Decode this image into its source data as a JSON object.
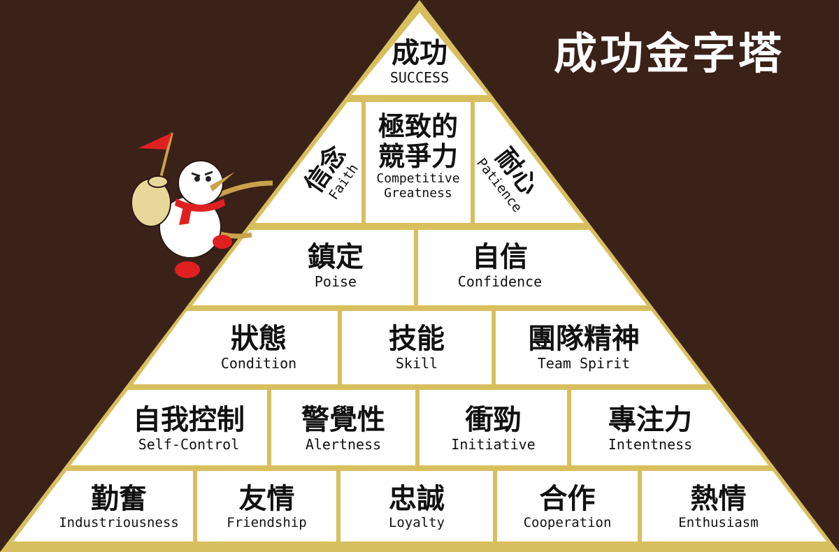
{
  "title": "成功金字塔",
  "pyramid": {
    "apex": {
      "zh": "成功",
      "en": "SUCCESS"
    },
    "row2": {
      "faith": {
        "zh": "信念",
        "en": "Faith"
      },
      "competitive": {
        "zh1": "極致的",
        "zh2": "競爭力",
        "en1": "Competitive",
        "en2": "Greatness"
      },
      "patience": {
        "zh": "耐心",
        "en": "Patience"
      }
    },
    "row3": [
      {
        "zh": "鎮定",
        "en": "Poise"
      },
      {
        "zh": "自信",
        "en": "Confidence"
      }
    ],
    "row4": [
      {
        "zh": "狀態",
        "en": "Condition"
      },
      {
        "zh": "技能",
        "en": "Skill"
      },
      {
        "zh": "團隊精神",
        "en": "Team Spirit"
      }
    ],
    "row5": [
      {
        "zh": "自我控制",
        "en": "Self-Control"
      },
      {
        "zh": "警覺性",
        "en": "Alertness"
      },
      {
        "zh": "衝勁",
        "en": "Initiative"
      },
      {
        "zh": "專注力",
        "en": "Intentness"
      }
    ],
    "row6": [
      {
        "zh": "勤奮",
        "en": "Industriousness"
      },
      {
        "zh": "友情",
        "en": "Friendship"
      },
      {
        "zh": "忠誠",
        "en": "Loyalty"
      },
      {
        "zh": "合作",
        "en": "Cooperation"
      },
      {
        "zh": "熱情",
        "en": "Enthusiasm"
      }
    ]
  },
  "colors": {
    "background": "#3b2219",
    "frame": "#d8bf5e",
    "block": "#ffffff",
    "flag": "#e02020",
    "snowman_scarf": "#e02020",
    "bag": "#e8d79a"
  },
  "icons": [
    "snowman-climber-icon",
    "red-flag-icon",
    "bundle-bag-icon"
  ]
}
